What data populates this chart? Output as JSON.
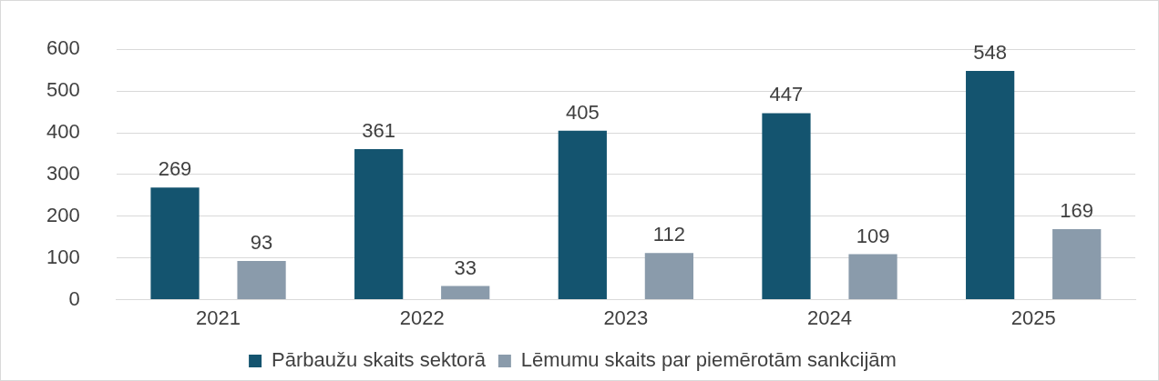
{
  "chart_data": {
    "type": "bar",
    "categories": [
      "2021",
      "2022",
      "2023",
      "2024",
      "2025"
    ],
    "series": [
      {
        "name": "Pārbaužu skaits sektorā",
        "color": "#14546f",
        "values": [
          269,
          361,
          405,
          447,
          548
        ]
      },
      {
        "name": "Lēmumu skaits par piemērotām sankcijām",
        "color": "#8a9bab",
        "values": [
          93,
          33,
          112,
          109,
          169
        ]
      }
    ],
    "ylim": [
      0,
      600
    ],
    "yticks": [
      0,
      100,
      200,
      300,
      400,
      500,
      600
    ],
    "grid": "y",
    "legend": "bottom",
    "data_labels": true
  }
}
